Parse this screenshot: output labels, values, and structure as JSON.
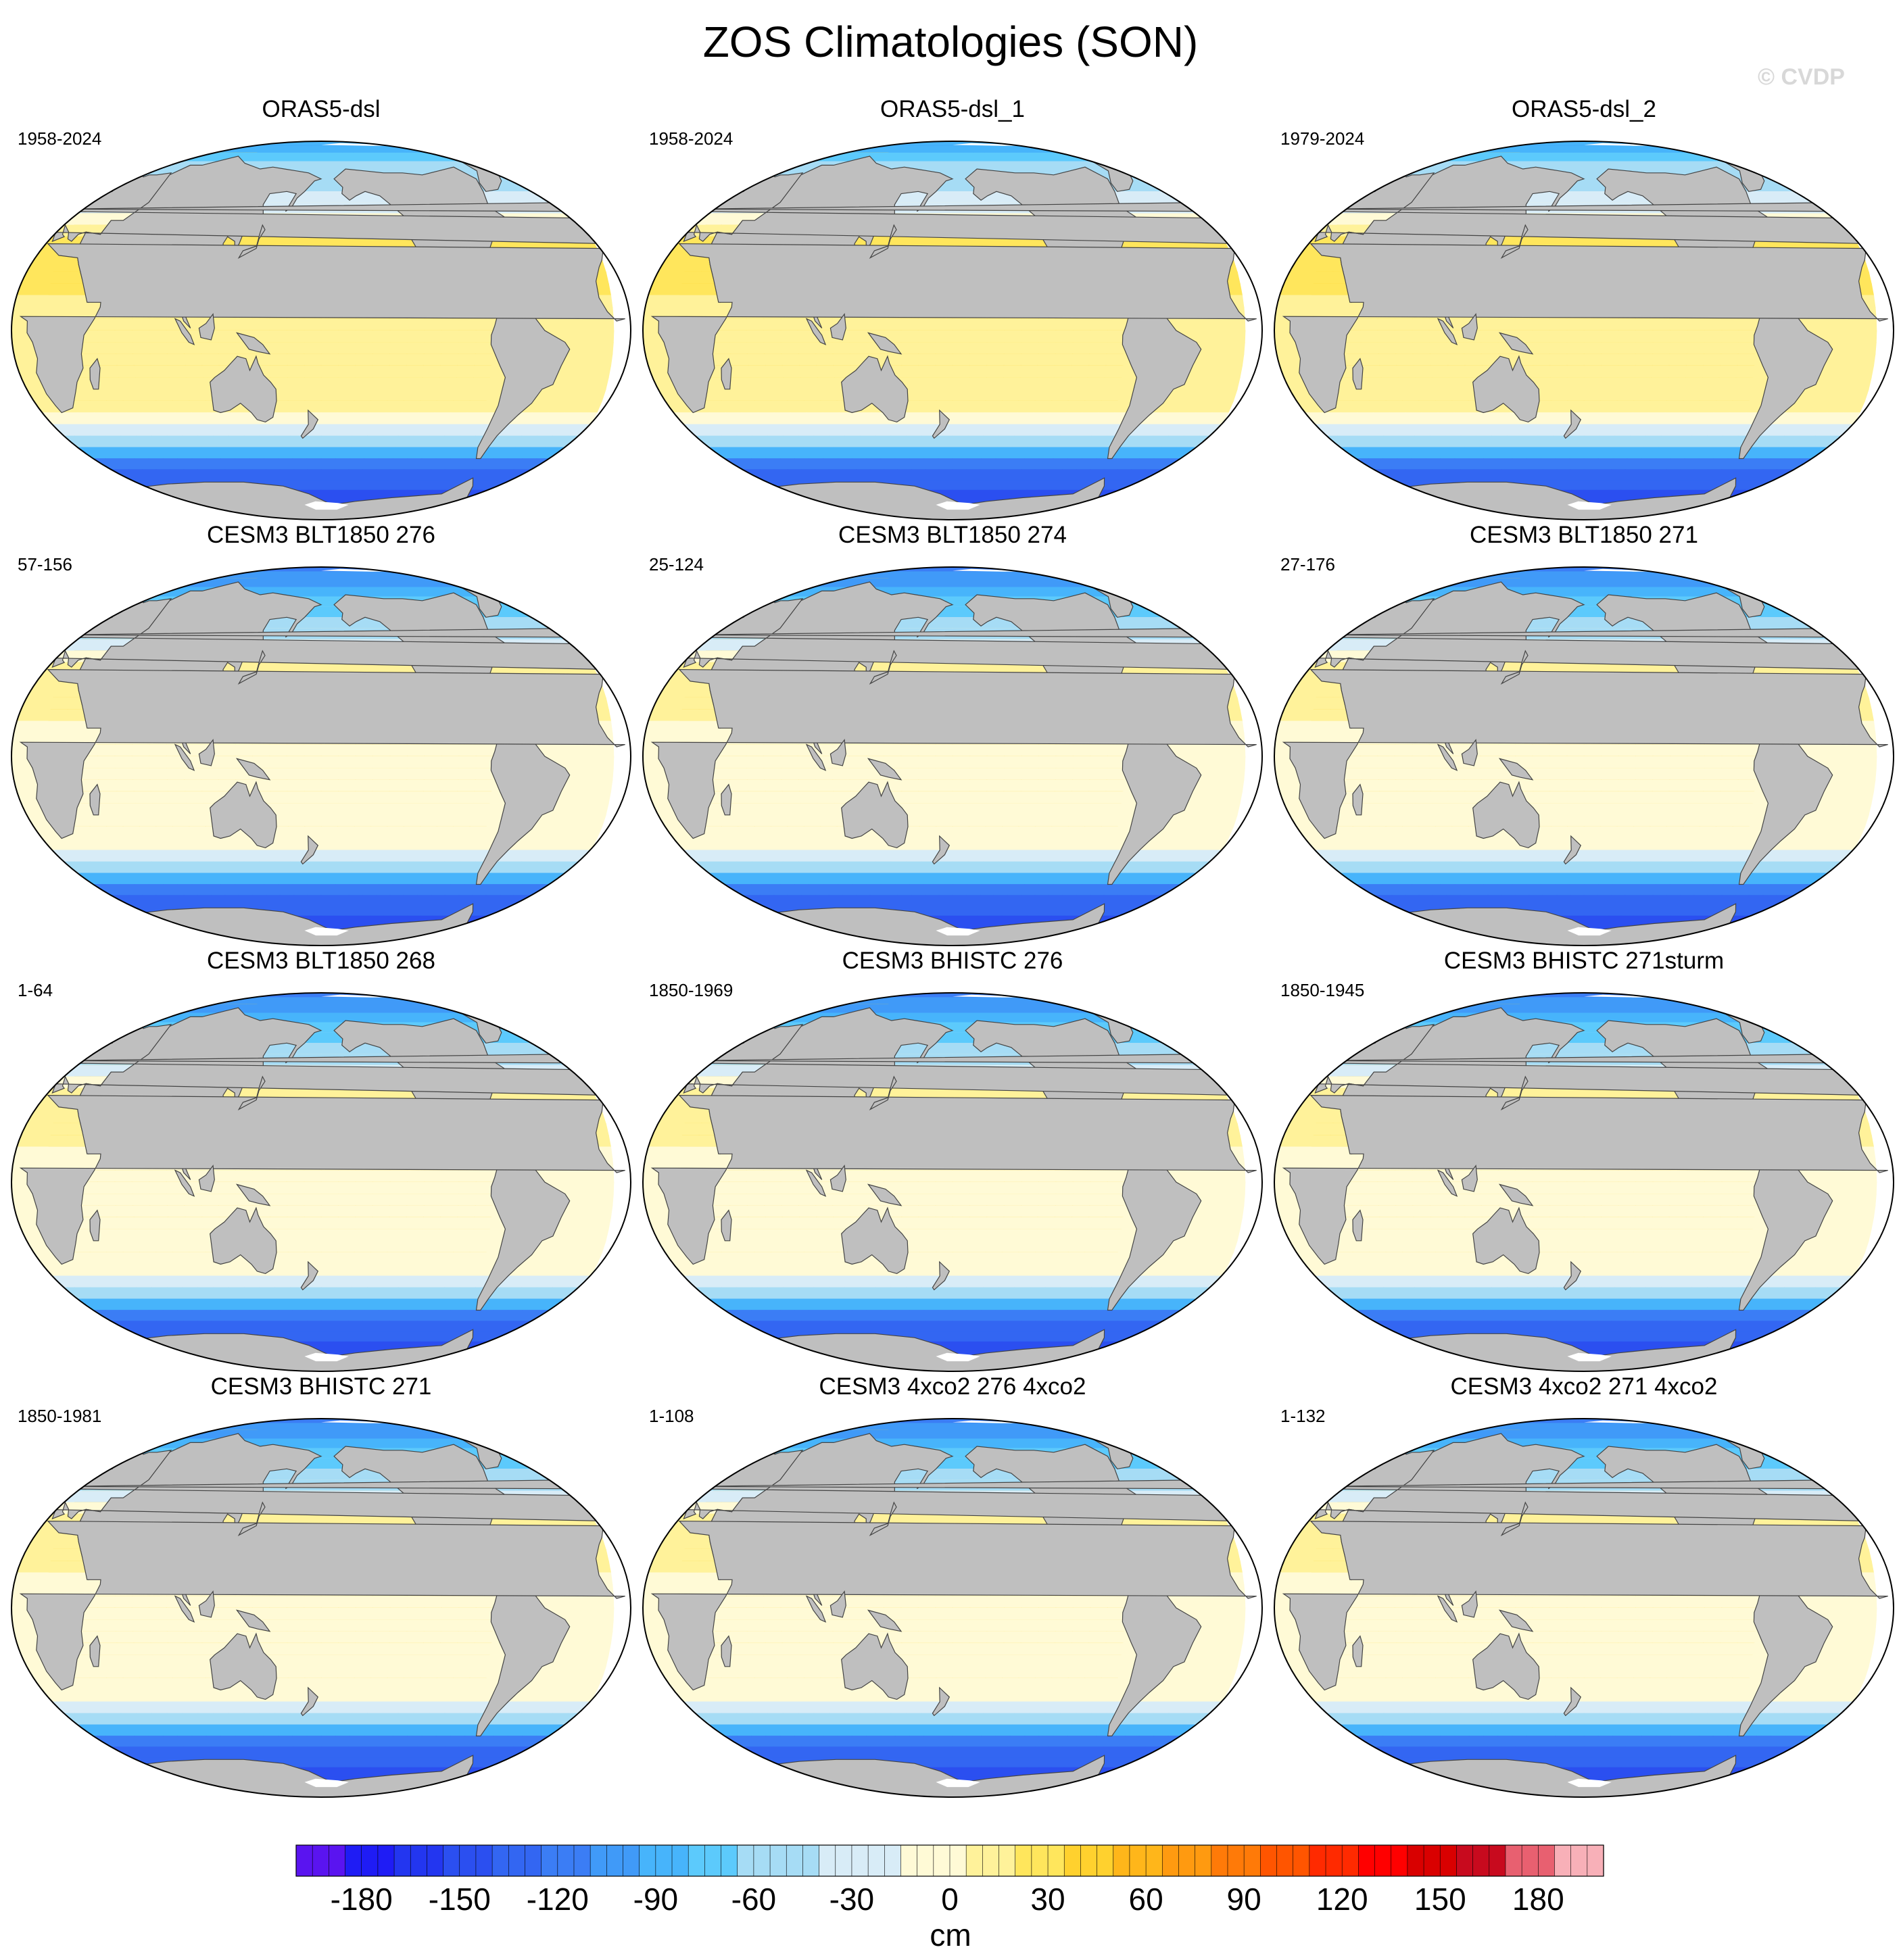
{
  "figure": {
    "title": "ZOS Climatologies (SON)",
    "watermark": "© CVDP"
  },
  "colors": {
    "land": "#bfbfbf",
    "coastline": "#444444",
    "sea_ice": "#ffffff"
  },
  "panels": [
    {
      "title": "ORAS5-dsl",
      "period": "1958-2024",
      "pattern": "obs"
    },
    {
      "title": "ORAS5-dsl_1",
      "period": "1958-2024",
      "pattern": "obs"
    },
    {
      "title": "ORAS5-dsl_2",
      "period": "1979-2024",
      "pattern": "obs"
    },
    {
      "title": "CESM3 BLT1850 276",
      "period": "57-156",
      "pattern": "model"
    },
    {
      "title": "CESM3 BLT1850 274",
      "period": "25-124",
      "pattern": "model"
    },
    {
      "title": "CESM3 BLT1850 271",
      "period": "27-176",
      "pattern": "model"
    },
    {
      "title": "CESM3 BLT1850 268",
      "period": "1-64",
      "pattern": "model"
    },
    {
      "title": "CESM3 BHISTC 276",
      "period": "1850-1969",
      "pattern": "model"
    },
    {
      "title": "CESM3 BHISTC 271sturm",
      "period": "1850-1945",
      "pattern": "model"
    },
    {
      "title": "CESM3 BHISTC 271",
      "period": "1850-1981",
      "pattern": "model"
    },
    {
      "title": "CESM3 4xco2 276 4xco2",
      "period": "1-108",
      "pattern": "model_warm"
    },
    {
      "title": "CESM3 4xco2 271 4xco2",
      "period": "1-132",
      "pattern": "model_warm"
    }
  ],
  "colorbar": {
    "unit": "cm",
    "tick_labels": [
      "-180",
      "-150",
      "-120",
      "-90",
      "-60",
      "-30",
      "0",
      "30",
      "60",
      "90",
      "120",
      "150",
      "180"
    ],
    "tick_values": [
      -180,
      -150,
      -120,
      -90,
      -60,
      -30,
      0,
      30,
      60,
      90,
      120,
      150,
      180
    ],
    "range": [
      -200,
      200
    ],
    "interval": 5,
    "colors": [
      "#7b1ff5",
      "#5a14f0",
      "#1f1cf5",
      "#2336f0",
      "#2b4ff0",
      "#3366f2",
      "#3b7df5",
      "#409af8",
      "#47b4fb",
      "#5ccafc",
      "#a6dcf5",
      "#d8ecf7",
      "#fffad6",
      "#fff29a",
      "#ffe65c",
      "#ffd12e",
      "#ffb61a",
      "#ff9a10",
      "#ff7a08",
      "#ff5500",
      "#ff2a00",
      "#ff0000",
      "#d90000",
      "#c80a1e",
      "#e86070",
      "#f8b0b8"
    ],
    "color_stops": [
      -200,
      -185,
      -170,
      -155,
      -140,
      -125,
      -110,
      -95,
      -80,
      -65,
      -40,
      -15,
      5,
      20,
      35,
      50,
      65,
      80,
      95,
      110,
      125,
      140,
      155,
      170,
      185,
      200
    ]
  }
}
